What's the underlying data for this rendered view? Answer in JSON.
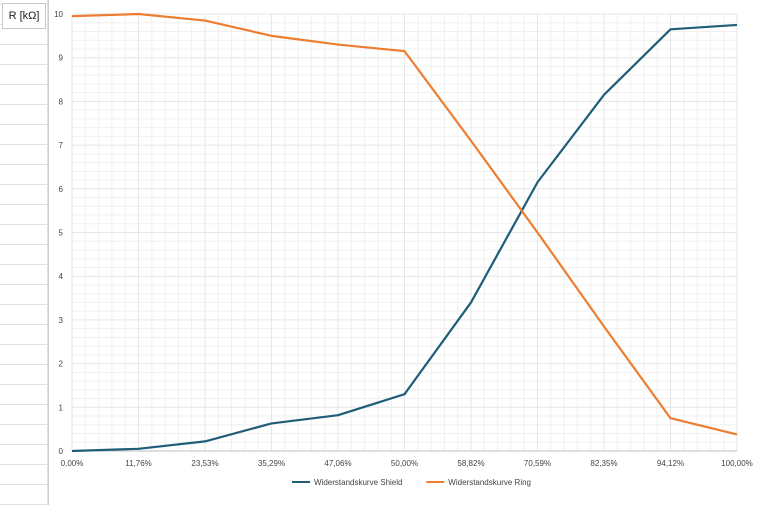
{
  "sheet": {
    "cell_label": "R [kΩ]"
  },
  "colors": {
    "shield": "#1f5d79",
    "ring": "#ed7d31",
    "gridline": "#e6e6e6"
  },
  "chart_data": {
    "type": "line",
    "title": "",
    "xlabel": "",
    "ylabel": "",
    "categories": [
      "0,00%",
      "11,76%",
      "23,53%",
      "35,29%",
      "47,06%",
      "50,00%",
      "58,82%",
      "70,59%",
      "82,35%",
      "94,12%",
      "100,00%"
    ],
    "y_ticks": [
      "0",
      "1",
      "2",
      "3",
      "4",
      "5",
      "6",
      "7",
      "8",
      "9",
      "10"
    ],
    "ylim": [
      0,
      10
    ],
    "grid": true,
    "legend_position": "bottom",
    "series": [
      {
        "name": "Widerstandskurve Shield",
        "values": [
          0,
          0.05,
          0.22,
          0.63,
          0.82,
          1.3,
          3.4,
          6.15,
          8.15,
          9.65,
          9.75
        ]
      },
      {
        "name": "Widerstandskurve Ring",
        "values": [
          9.95,
          10.0,
          9.85,
          9.5,
          9.3,
          9.15,
          7.1,
          5.0,
          2.85,
          0.75,
          0.38
        ]
      }
    ]
  }
}
